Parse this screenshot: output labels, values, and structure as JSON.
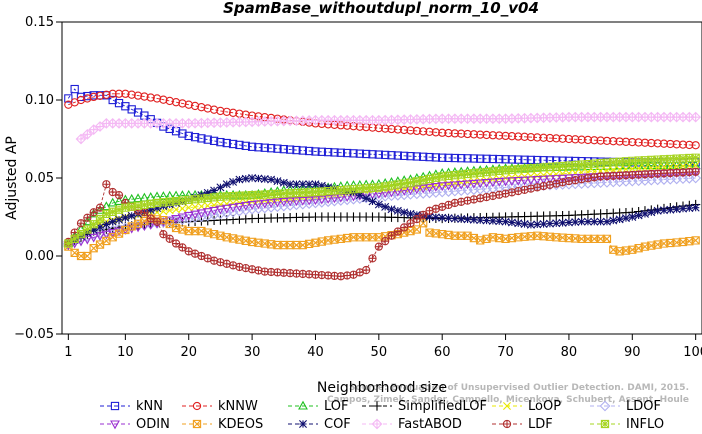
{
  "chart_data": {
    "type": "line",
    "title": "SpamBase_withoutdupl_norm_10_v04",
    "xlabel": "Neighborhood size",
    "ylabel": "Adjusted AP",
    "xlim": [
      0,
      101
    ],
    "ylim": [
      -0.05,
      0.15
    ],
    "xticks": [
      1,
      10,
      20,
      30,
      40,
      50,
      60,
      70,
      80,
      90,
      100
    ],
    "yticks": [
      -0.05,
      0.0,
      0.05,
      0.1,
      0.15
    ],
    "ytick_labels": [
      "−0.05",
      "0.00",
      "0.05",
      "0.10",
      "0.15"
    ],
    "watermark": [
      "Source: Evaluation of Unsupervised Outlier Detection. DAMI, 2015.",
      "Campos, Zimek, Sander, Campello, Micenkova, Schubert, Assent, Houle"
    ],
    "legend_position": "bottom",
    "series": [
      {
        "name": "kNN",
        "color": "#1f1fd6",
        "marker": "square",
        "points": [
          [
            1,
            0.101
          ],
          [
            2,
            0.107
          ],
          [
            3,
            0.102
          ],
          [
            5,
            0.103
          ],
          [
            7,
            0.103
          ],
          [
            8,
            0.1
          ],
          [
            10,
            0.096
          ],
          [
            13,
            0.09
          ],
          [
            16,
            0.083
          ],
          [
            20,
            0.077
          ],
          [
            25,
            0.073
          ],
          [
            30,
            0.07
          ],
          [
            40,
            0.067
          ],
          [
            50,
            0.065
          ],
          [
            60,
            0.063
          ],
          [
            70,
            0.062
          ],
          [
            80,
            0.061
          ],
          [
            90,
            0.06
          ],
          [
            100,
            0.06
          ]
        ]
      },
      {
        "name": "kNNW",
        "color": "#e02020",
        "marker": "circle",
        "points": [
          [
            1,
            0.097
          ],
          [
            3,
            0.1
          ],
          [
            5,
            0.102
          ],
          [
            8,
            0.104
          ],
          [
            10,
            0.104
          ],
          [
            15,
            0.101
          ],
          [
            20,
            0.097
          ],
          [
            25,
            0.093
          ],
          [
            30,
            0.09
          ],
          [
            40,
            0.085
          ],
          [
            50,
            0.082
          ],
          [
            60,
            0.079
          ],
          [
            70,
            0.077
          ],
          [
            80,
            0.075
          ],
          [
            90,
            0.073
          ],
          [
            100,
            0.071
          ]
        ]
      },
      {
        "name": "LOF",
        "color": "#20c020",
        "marker": "triangle-up",
        "points": [
          [
            1,
            0.008
          ],
          [
            3,
            0.017
          ],
          [
            5,
            0.027
          ],
          [
            8,
            0.034
          ],
          [
            10,
            0.036
          ],
          [
            15,
            0.038
          ],
          [
            20,
            0.039
          ],
          [
            25,
            0.039
          ],
          [
            30,
            0.039
          ],
          [
            35,
            0.042
          ],
          [
            40,
            0.043
          ],
          [
            45,
            0.045
          ],
          [
            50,
            0.046
          ],
          [
            55,
            0.049
          ],
          [
            60,
            0.053
          ],
          [
            70,
            0.056
          ],
          [
            80,
            0.057
          ],
          [
            90,
            0.058
          ],
          [
            100,
            0.058
          ]
        ]
      },
      {
        "name": "SimplifiedLOF",
        "color": "#000000",
        "marker": "plus",
        "points": [
          [
            1,
            0.007
          ],
          [
            3,
            0.012
          ],
          [
            5,
            0.016
          ],
          [
            10,
            0.019
          ],
          [
            15,
            0.021
          ],
          [
            20,
            0.022
          ],
          [
            25,
            0.023
          ],
          [
            30,
            0.024
          ],
          [
            40,
            0.025
          ],
          [
            50,
            0.025
          ],
          [
            60,
            0.024
          ],
          [
            70,
            0.025
          ],
          [
            80,
            0.026
          ],
          [
            90,
            0.028
          ],
          [
            100,
            0.033
          ]
        ]
      },
      {
        "name": "LoOP",
        "color": "#e8e800",
        "marker": "x",
        "points": [
          [
            1,
            0.008
          ],
          [
            5,
            0.02
          ],
          [
            10,
            0.025
          ],
          [
            15,
            0.028
          ],
          [
            20,
            0.031
          ],
          [
            25,
            0.033
          ],
          [
            30,
            0.035
          ],
          [
            40,
            0.038
          ],
          [
            50,
            0.041
          ],
          [
            60,
            0.046
          ],
          [
            70,
            0.05
          ],
          [
            80,
            0.053
          ],
          [
            90,
            0.056
          ],
          [
            100,
            0.058
          ]
        ]
      },
      {
        "name": "LDOF",
        "color": "#b0b0f0",
        "marker": "diamond",
        "points": [
          [
            1,
            0.008
          ],
          [
            5,
            0.014
          ],
          [
            10,
            0.018
          ],
          [
            15,
            0.021
          ],
          [
            20,
            0.024
          ],
          [
            25,
            0.027
          ],
          [
            30,
            0.03
          ],
          [
            40,
            0.034
          ],
          [
            50,
            0.038
          ],
          [
            60,
            0.041
          ],
          [
            70,
            0.044
          ],
          [
            80,
            0.046
          ],
          [
            90,
            0.048
          ],
          [
            100,
            0.05
          ]
        ]
      },
      {
        "name": "ODIN",
        "color": "#9a2fd0",
        "marker": "triangle-down",
        "points": [
          [
            1,
            0.007
          ],
          [
            5,
            0.012
          ],
          [
            10,
            0.017
          ],
          [
            15,
            0.021
          ],
          [
            20,
            0.026
          ],
          [
            25,
            0.03
          ],
          [
            30,
            0.033
          ],
          [
            35,
            0.035
          ],
          [
            40,
            0.036
          ],
          [
            50,
            0.04
          ],
          [
            60,
            0.045
          ],
          [
            70,
            0.048
          ],
          [
            80,
            0.05
          ],
          [
            90,
            0.052
          ],
          [
            100,
            0.054
          ]
        ]
      },
      {
        "name": "KDEOS",
        "color": "#f0a020",
        "marker": "box-x",
        "points": [
          [
            1,
            0.006
          ],
          [
            2,
            0.002
          ],
          [
            3,
            0.0
          ],
          [
            4,
            0.0
          ],
          [
            5,
            0.005
          ],
          [
            8,
            0.012
          ],
          [
            11,
            0.019
          ],
          [
            14,
            0.024
          ],
          [
            16,
            0.023
          ],
          [
            18,
            0.018
          ],
          [
            20,
            0.016
          ],
          [
            22,
            0.016
          ],
          [
            26,
            0.012
          ],
          [
            30,
            0.009
          ],
          [
            34,
            0.007
          ],
          [
            38,
            0.007
          ],
          [
            42,
            0.01
          ],
          [
            46,
            0.012
          ],
          [
            50,
            0.012
          ],
          [
            53,
            0.014
          ],
          [
            56,
            0.017
          ],
          [
            57,
            0.021
          ],
          [
            58,
            0.015
          ],
          [
            60,
            0.014
          ],
          [
            62,
            0.013
          ],
          [
            64,
            0.013
          ],
          [
            66,
            0.01
          ],
          [
            68,
            0.012
          ],
          [
            70,
            0.011
          ],
          [
            72,
            0.012
          ],
          [
            75,
            0.013
          ],
          [
            78,
            0.012
          ],
          [
            82,
            0.011
          ],
          [
            86,
            0.011
          ],
          [
            87,
            0.004
          ],
          [
            88,
            0.003
          ],
          [
            90,
            0.004
          ],
          [
            92,
            0.006
          ],
          [
            95,
            0.008
          ],
          [
            98,
            0.009
          ],
          [
            100,
            0.01
          ]
        ]
      },
      {
        "name": "COF",
        "color": "#101070",
        "marker": "asterisk",
        "points": [
          [
            1,
            0.008
          ],
          [
            4,
            0.015
          ],
          [
            8,
            0.022
          ],
          [
            12,
            0.027
          ],
          [
            16,
            0.032
          ],
          [
            20,
            0.036
          ],
          [
            24,
            0.042
          ],
          [
            26,
            0.046
          ],
          [
            28,
            0.049
          ],
          [
            30,
            0.05
          ],
          [
            33,
            0.049
          ],
          [
            36,
            0.046
          ],
          [
            40,
            0.046
          ],
          [
            42,
            0.044
          ],
          [
            44,
            0.042
          ],
          [
            46,
            0.041
          ],
          [
            48,
            0.037
          ],
          [
            50,
            0.033
          ],
          [
            52,
            0.03
          ],
          [
            55,
            0.027
          ],
          [
            58,
            0.025
          ],
          [
            62,
            0.024
          ],
          [
            66,
            0.023
          ],
          [
            70,
            0.022
          ],
          [
            74,
            0.02
          ],
          [
            78,
            0.021
          ],
          [
            82,
            0.022
          ],
          [
            86,
            0.022
          ],
          [
            90,
            0.025
          ],
          [
            94,
            0.029
          ],
          [
            97,
            0.03
          ],
          [
            100,
            0.031
          ]
        ]
      },
      {
        "name": "FastABOD",
        "color": "#f4b8f4",
        "marker": "diamond-plus",
        "points": [
          [
            3,
            0.075
          ],
          [
            5,
            0.081
          ],
          [
            7,
            0.085
          ],
          [
            10,
            0.085
          ],
          [
            13,
            0.085
          ],
          [
            16,
            0.085
          ],
          [
            20,
            0.085
          ],
          [
            30,
            0.086
          ],
          [
            40,
            0.087
          ],
          [
            50,
            0.087
          ],
          [
            60,
            0.088
          ],
          [
            70,
            0.088
          ],
          [
            80,
            0.089
          ],
          [
            90,
            0.089
          ],
          [
            100,
            0.089
          ]
        ]
      },
      {
        "name": "LDF",
        "color": "#b03030",
        "marker": "circle-plus",
        "points": [
          [
            1,
            0.009
          ],
          [
            3,
            0.021
          ],
          [
            5,
            0.028
          ],
          [
            6,
            0.031
          ],
          [
            7,
            0.046
          ],
          [
            8,
            0.041
          ],
          [
            9,
            0.039
          ],
          [
            10,
            0.034
          ],
          [
            12,
            0.029
          ],
          [
            13,
            0.028
          ],
          [
            14,
            0.024
          ],
          [
            15,
            0.022
          ],
          [
            16,
            0.014
          ],
          [
            18,
            0.008
          ],
          [
            20,
            0.003
          ],
          [
            24,
            -0.003
          ],
          [
            28,
            -0.007
          ],
          [
            32,
            -0.01
          ],
          [
            36,
            -0.011
          ],
          [
            40,
            -0.012
          ],
          [
            44,
            -0.013
          ],
          [
            46,
            -0.012
          ],
          [
            48,
            -0.009
          ],
          [
            50,
            0.006
          ],
          [
            52,
            0.013
          ],
          [
            55,
            0.021
          ],
          [
            58,
            0.029
          ],
          [
            62,
            0.034
          ],
          [
            66,
            0.037
          ],
          [
            70,
            0.04
          ],
          [
            75,
            0.044
          ],
          [
            80,
            0.048
          ],
          [
            85,
            0.051
          ],
          [
            90,
            0.052
          ],
          [
            95,
            0.053
          ],
          [
            100,
            0.054
          ]
        ]
      },
      {
        "name": "INFLO",
        "color": "#a6d420",
        "marker": "box-asterisk",
        "points": [
          [
            1,
            0.008
          ],
          [
            4,
            0.017
          ],
          [
            7,
            0.027
          ],
          [
            10,
            0.031
          ],
          [
            15,
            0.034
          ],
          [
            20,
            0.036
          ],
          [
            25,
            0.038
          ],
          [
            30,
            0.039
          ],
          [
            40,
            0.041
          ],
          [
            50,
            0.044
          ],
          [
            55,
            0.047
          ],
          [
            60,
            0.051
          ],
          [
            70,
            0.055
          ],
          [
            80,
            0.058
          ],
          [
            90,
            0.061
          ],
          [
            100,
            0.063
          ]
        ]
      }
    ]
  }
}
